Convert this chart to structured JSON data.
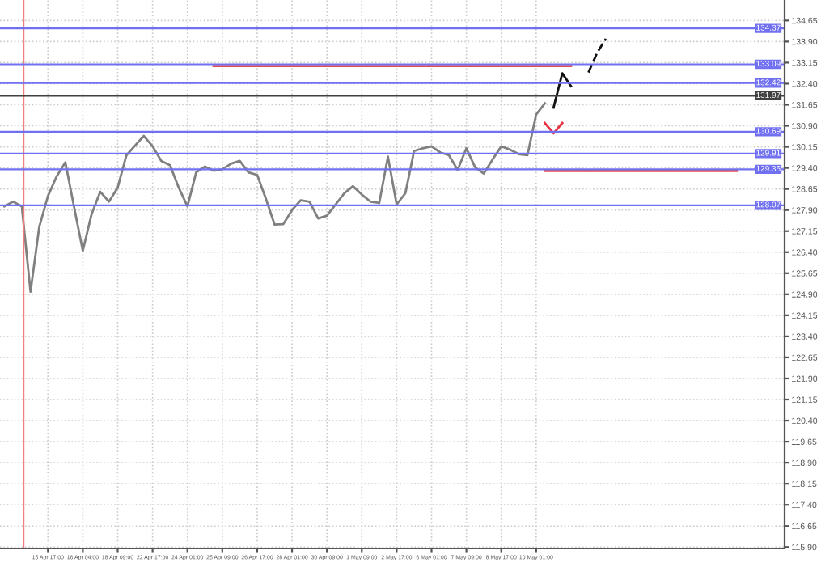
{
  "chart_data": {
    "type": "line",
    "categories": [
      null,
      null,
      null,
      null,
      null,
      "15 Apr 17:00",
      null,
      null,
      null,
      "16 Apr 04:00",
      null,
      null,
      null,
      "18 Apr 09:00",
      null,
      null,
      null,
      "22 Apr 17:00",
      null,
      null,
      null,
      "24 Apr 01:00",
      null,
      null,
      null,
      "25 Apr 09:00",
      null,
      null,
      null,
      "26 Apr 17:00",
      null,
      null,
      null,
      "28 Apr 01:00",
      null,
      null,
      null,
      "30 Apr 09:00",
      null,
      null,
      null,
      "1 May 09:00",
      null,
      null,
      null,
      "2 May 17:00",
      null,
      null,
      null,
      "6 May 01:00",
      null,
      null,
      null,
      "7 May 09:00",
      null,
      null,
      null,
      "8 May 17:00",
      null,
      null,
      null,
      "10 May 01:00",
      null,
      null,
      null,
      null,
      null,
      null,
      null,
      null,
      null,
      null,
      null,
      null,
      null,
      null,
      null,
      null,
      null,
      null,
      null,
      null,
      null,
      null,
      null,
      null,
      null,
      null,
      null,
      null
    ],
    "series": [
      {
        "color": "#808080",
        "values": [
          128.03,
          128.2,
          128.03,
          124.99,
          127.3,
          128.4,
          129.1,
          129.6,
          128.0,
          126.45,
          127.75,
          128.55,
          128.2,
          128.7,
          129.85,
          130.2,
          130.54,
          130.17,
          129.65,
          129.5,
          128.7,
          128.03,
          129.24,
          129.45,
          129.3,
          129.35,
          129.55,
          129.65,
          129.24,
          129.15,
          128.3,
          127.38,
          127.4,
          127.9,
          128.25,
          128.2,
          127.6,
          127.7,
          128.1,
          128.5,
          128.75,
          128.45,
          128.2,
          128.15,
          129.8,
          128.1,
          128.5,
          130.0,
          130.1,
          130.17,
          129.95,
          129.85,
          129.33,
          130.1,
          129.42,
          129.2,
          129.7,
          130.17,
          130.05,
          129.89,
          129.85,
          131.3,
          131.7,
          null,
          null,
          null,
          null,
          null,
          null,
          null,
          null,
          null,
          null,
          null,
          null,
          null,
          null,
          null,
          null,
          null,
          null,
          null,
          null,
          null,
          null,
          null,
          null,
          null,
          null,
          null
        ]
      },
      {
        "color": "#e05050",
        "values": [
          null,
          null,
          null,
          null,
          null,
          null,
          null,
          null,
          null,
          null,
          null,
          null,
          null,
          null,
          null,
          null,
          null,
          null,
          null,
          null,
          null,
          null,
          null,
          null,
          133.03,
          133.03,
          133.03,
          133.03,
          133.03,
          133.03,
          133.03,
          133.03,
          133.03,
          133.03,
          133.03,
          133.03,
          133.03,
          133.03,
          133.03,
          133.03,
          133.03,
          133.03,
          133.03,
          133.03,
          133.03,
          133.03,
          133.03,
          133.03,
          133.03,
          133.03,
          133.03,
          133.03,
          133.03,
          133.03,
          133.03,
          133.03,
          133.03,
          133.03,
          133.03,
          133.03,
          133.03,
          133.03,
          133.03,
          133.03,
          133.03,
          133.03,
          null,
          null,
          null,
          null,
          null,
          null,
          null,
          null,
          null,
          null,
          null,
          null,
          null,
          null,
          null,
          null,
          null,
          null,
          null,
          null,
          null,
          null,
          null,
          null
        ]
      },
      {
        "color": "#e05050",
        "values": [
          null,
          null,
          null,
          null,
          null,
          null,
          null,
          null,
          null,
          null,
          null,
          null,
          null,
          null,
          null,
          null,
          null,
          null,
          null,
          null,
          null,
          null,
          null,
          null,
          null,
          null,
          null,
          null,
          null,
          null,
          null,
          null,
          null,
          null,
          null,
          null,
          null,
          null,
          null,
          null,
          null,
          null,
          null,
          null,
          null,
          null,
          null,
          null,
          null,
          null,
          null,
          null,
          null,
          null,
          null,
          null,
          null,
          null,
          null,
          null,
          null,
          null,
          129.29,
          129.29,
          129.29,
          129.29,
          129.29,
          129.29,
          129.29,
          129.29,
          129.29,
          129.29,
          129.29,
          129.29,
          129.29,
          129.29,
          129.29,
          129.29,
          129.29,
          129.29,
          129.29,
          129.29,
          129.29,
          129.29,
          129.29,
          null,
          null,
          null,
          null,
          null
        ]
      },
      {
        "color": "#111111",
        "values": [
          null,
          null,
          null,
          null,
          null,
          null,
          null,
          null,
          null,
          null,
          null,
          null,
          null,
          null,
          null,
          null,
          null,
          null,
          null,
          null,
          null,
          null,
          null,
          null,
          null,
          null,
          null,
          null,
          null,
          null,
          null,
          null,
          null,
          null,
          null,
          null,
          null,
          null,
          null,
          null,
          null,
          null,
          null,
          null,
          null,
          null,
          null,
          null,
          null,
          null,
          null,
          null,
          null,
          null,
          null,
          null,
          null,
          null,
          null,
          null,
          null,
          null,
          null,
          131.55,
          132.77,
          132.31,
          null,
          null,
          null,
          null,
          null,
          null,
          null,
          null,
          null,
          null,
          null,
          null,
          null,
          null,
          null,
          null,
          null,
          null,
          null,
          null,
          null,
          null,
          null,
          null
        ]
      },
      {
        "color": "#111111",
        "line_style": "dashed",
        "values": [
          null,
          null,
          null,
          null,
          null,
          null,
          null,
          null,
          null,
          null,
          null,
          null,
          null,
          null,
          null,
          null,
          null,
          null,
          null,
          null,
          null,
          null,
          null,
          null,
          null,
          null,
          null,
          null,
          null,
          null,
          null,
          null,
          null,
          null,
          null,
          null,
          null,
          null,
          null,
          null,
          null,
          null,
          null,
          null,
          null,
          null,
          null,
          null,
          null,
          null,
          null,
          null,
          null,
          null,
          null,
          null,
          null,
          null,
          null,
          null,
          null,
          null,
          null,
          null,
          null,
          null,
          null,
          132.8,
          133.5,
          134.0,
          null,
          null,
          null,
          null,
          null,
          null,
          null,
          null,
          null,
          null,
          null,
          null,
          null,
          null,
          null,
          null,
          null,
          null,
          null,
          null
        ]
      },
      {
        "color": "#e83040",
        "values": [
          null,
          null,
          null,
          null,
          null,
          null,
          null,
          null,
          null,
          null,
          null,
          null,
          null,
          null,
          null,
          null,
          null,
          null,
          null,
          null,
          null,
          null,
          null,
          null,
          null,
          null,
          null,
          null,
          null,
          null,
          null,
          null,
          null,
          null,
          null,
          null,
          null,
          null,
          null,
          null,
          null,
          null,
          null,
          null,
          null,
          null,
          null,
          null,
          null,
          null,
          null,
          null,
          null,
          null,
          null,
          null,
          null,
          null,
          null,
          null,
          null,
          null,
          131.0,
          130.63,
          131.0,
          null,
          null,
          null,
          null,
          null,
          null,
          null,
          null,
          null,
          null,
          null,
          null,
          null,
          null,
          null,
          null,
          null,
          null,
          null,
          null,
          null,
          null,
          null,
          null,
          null
        ]
      }
    ],
    "ylim": [
      115.85,
      135.38
    ],
    "yticks": [
      "115.90",
      "116.65",
      "117.40",
      "118.15",
      "118.90",
      "119.65",
      "120.40",
      "121.15",
      "121.90",
      "122.65",
      "123.40",
      "124.15",
      "124.90",
      "125.65",
      "126.40",
      "127.15",
      "127.90",
      "128.65",
      "129.40",
      "130.15",
      "130.90",
      "131.65",
      "132.40",
      "133.15",
      "133.90",
      "134.65"
    ],
    "ref_lines": [
      {
        "axis": "y",
        "value": 134.37,
        "label": "134.37",
        "color": "#7070f0"
      },
      {
        "axis": "y",
        "value": 133.09,
        "label": "133.09",
        "color": "#7070f0"
      },
      {
        "axis": "y",
        "value": 132.42,
        "label": "132.42",
        "color": "#7070f0"
      },
      {
        "axis": "y",
        "value": 131.97,
        "label": "131.97",
        "color": "#404040"
      },
      {
        "axis": "y",
        "value": 130.69,
        "label": "130.69",
        "color": "#7070f0"
      },
      {
        "axis": "y",
        "value": 129.91,
        "label": "129.91",
        "color": "#7070f0"
      },
      {
        "axis": "y",
        "value": 129.35,
        "label": "129.35",
        "color": "#7070f0"
      },
      {
        "axis": "y",
        "value": 128.07,
        "label": "128.07",
        "color": "#7070f0"
      }
    ],
    "grid": true
  }
}
